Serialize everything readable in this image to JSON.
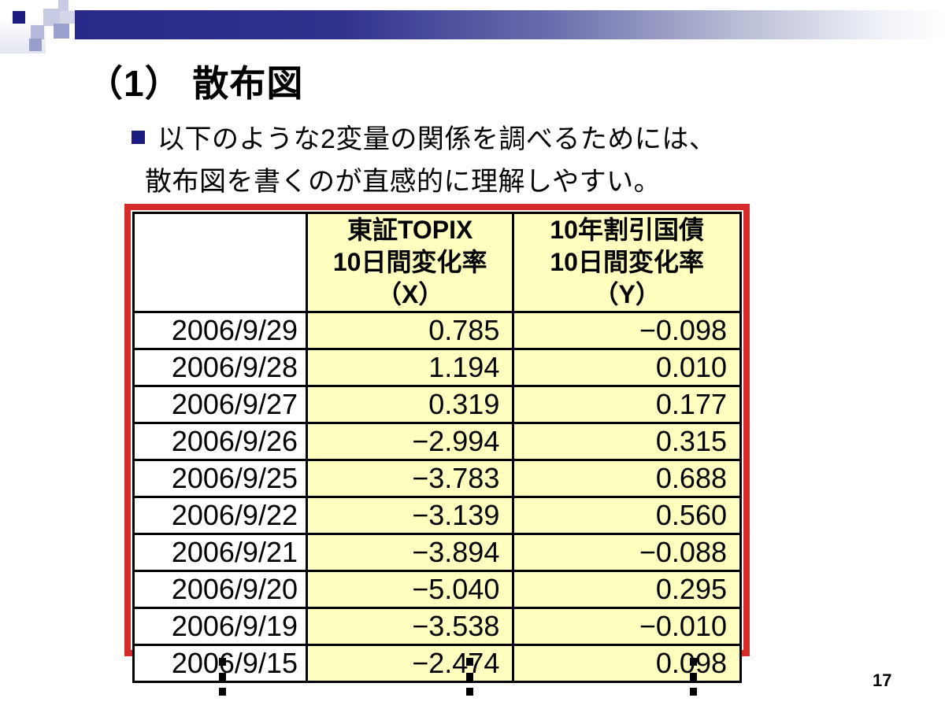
{
  "slide": {
    "title": "（1） 散布図",
    "bullet": {
      "line1": "以下のような2変量の関係を調べるためには、",
      "line2": "散布図を書くのが直感的に理解しやすい。"
    },
    "page_number": "17"
  },
  "table": {
    "header": {
      "corner": "",
      "x_column_lines": [
        "東証TOPIX",
        "10日間変化率",
        "（X）"
      ],
      "y_column_lines": [
        "10年割引国債",
        "10日間変化率",
        "（Y）"
      ]
    },
    "rows": [
      {
        "date": "2006/9/29",
        "x": "0.785",
        "y": "−0.098"
      },
      {
        "date": "2006/9/28",
        "x": "1.194",
        "y": "0.010"
      },
      {
        "date": "2006/9/27",
        "x": "0.319",
        "y": "0.177"
      },
      {
        "date": "2006/9/26",
        "x": "−2.994",
        "y": "0.315"
      },
      {
        "date": "2006/9/25",
        "x": "−3.783",
        "y": "0.688"
      },
      {
        "date": "2006/9/22",
        "x": "−3.139",
        "y": "0.560"
      },
      {
        "date": "2006/9/21",
        "x": "−3.894",
        "y": "−0.088"
      },
      {
        "date": "2006/9/20",
        "x": "−5.040",
        "y": "0.295"
      },
      {
        "date": "2006/9/19",
        "x": "−3.538",
        "y": "−0.010"
      },
      {
        "date": "2006/9/15",
        "x": "−2.474",
        "y": "0.098"
      }
    ]
  },
  "colors": {
    "accent_navy": "#1b1b80",
    "table_border_red": "#d42a2a",
    "cell_yellow": "#ffffc0"
  }
}
